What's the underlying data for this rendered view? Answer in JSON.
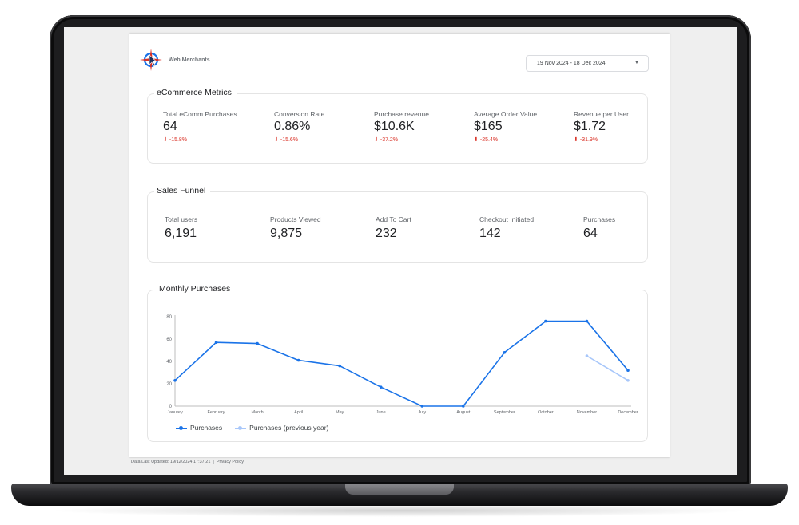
{
  "header": {
    "brand_name": "Web Merchants",
    "date_range": "19 Nov 2024 - 18 Dec 2024"
  },
  "ecommerce": {
    "title": "eCommerce Metrics",
    "metrics": [
      {
        "label": "Total eComm Purchases",
        "value": "64",
        "delta": "-15.8%"
      },
      {
        "label": "Conversion Rate",
        "value": "0.86%",
        "delta": "-15.6%"
      },
      {
        "label": "Purchase revenue",
        "value": "$10.6K",
        "delta": "-37.2%"
      },
      {
        "label": "Average Order Value",
        "value": "$165",
        "delta": "-25.4%"
      },
      {
        "label": "Revenue per User",
        "value": "$1.72",
        "delta": "-31.9%"
      }
    ]
  },
  "funnel": {
    "title": "Sales Funnel",
    "steps": [
      {
        "label": "Total users",
        "value": "6,191"
      },
      {
        "label": "Products Viewed",
        "value": "9,875"
      },
      {
        "label": "Add To Cart",
        "value": "232"
      },
      {
        "label": "Checkout Initiated",
        "value": "142"
      },
      {
        "label": "Purchases",
        "value": "64"
      }
    ]
  },
  "monthly": {
    "title": "Monthly Purchases"
  },
  "chart_data": {
    "type": "line",
    "title": "Monthly Purchases",
    "categories": [
      "January",
      "February",
      "March",
      "April",
      "May",
      "June",
      "July",
      "August",
      "September",
      "October",
      "November",
      "December"
    ],
    "series": [
      {
        "name": "Purchases",
        "color": "#1a73e8",
        "values": [
          23,
          57,
          56,
          41,
          36,
          17,
          0,
          0,
          48,
          76,
          76,
          32
        ]
      },
      {
        "name": "Purchases (previous year)",
        "color": "#a8c7fa",
        "values": [
          null,
          null,
          null,
          null,
          null,
          null,
          null,
          null,
          null,
          null,
          45,
          23
        ]
      }
    ],
    "ylim": [
      0,
      80
    ],
    "yticks": [
      0,
      20,
      40,
      60,
      80
    ],
    "grid": false,
    "legend": "bottom-left"
  },
  "footer": {
    "updated": "Data Last Updated: 19/12/2024 17:37:21",
    "separator": "|",
    "privacy": "Privacy Policy"
  },
  "icons": {
    "logo": "compass-cursor-logo-icon",
    "dropdown": "caret-down-icon",
    "delta": "arrow-down-icon"
  },
  "colors": {
    "accent": "#1a73e8",
    "negative": "#d93025",
    "previous_year": "#a8c7fa"
  }
}
